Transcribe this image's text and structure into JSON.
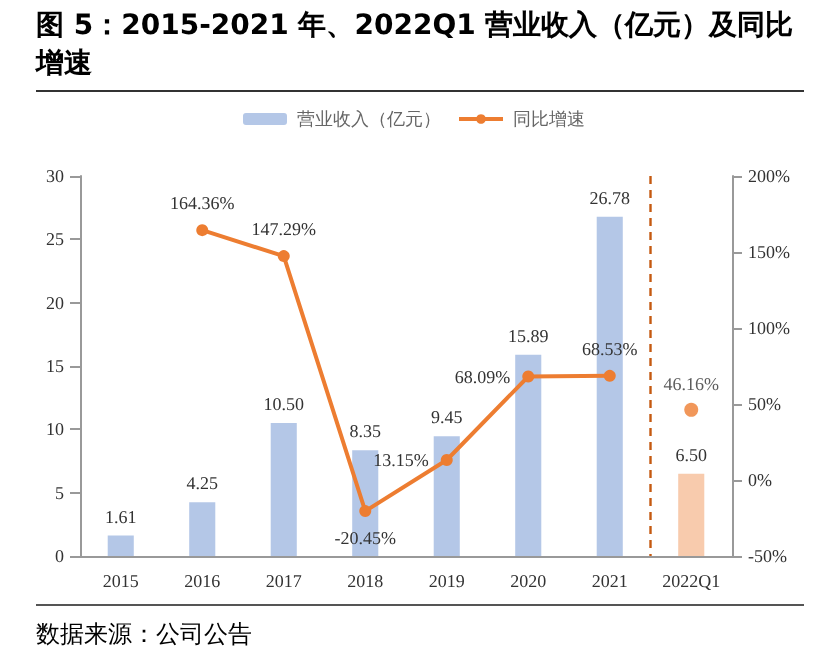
{
  "chart_data": {
    "type": "bar",
    "title": "图 5：2015-2021 年、2022Q1 营业收入（亿元）及同比增速",
    "annotations": [
      "数据来源：公司公告"
    ],
    "categories": [
      "2015",
      "2016",
      "2017",
      "2018",
      "2019",
      "2020",
      "2021",
      "2022Q1"
    ],
    "series": [
      {
        "name": "营业收入（亿元）",
        "color": "#b4c7e7",
        "colors": [
          "#b4c7e7",
          "#b4c7e7",
          "#b4c7e7",
          "#b4c7e7",
          "#b4c7e7",
          "#b4c7e7",
          "#b4c7e7",
          "#f8cbad"
        ],
        "values": [
          1.61,
          4.25,
          10.5,
          8.35,
          9.45,
          15.89,
          26.78,
          6.5
        ],
        "value_labels": [
          "1.61",
          "4.25",
          "10.50",
          "8.35",
          "9.45",
          "15.89",
          "26.78",
          "6.50"
        ]
      },
      {
        "name": "同比增速",
        "type": "line",
        "axis": "y2",
        "color": "#ed7d31",
        "marker": "circle",
        "values": [
          null,
          164.36,
          147.29,
          -20.45,
          13.15,
          68.09,
          68.53,
          null
        ],
        "value_labels": [
          null,
          "164.36%",
          "147.29%",
          "-20.45%",
          "13.15%",
          "68.09%",
          "68.53%",
          null
        ]
      },
      {
        "type": "scatter",
        "axis": "y2",
        "color": "#ed7d31",
        "marker": "circle",
        "x": [
          "2022Q1"
        ],
        "values": [
          46.16
        ],
        "value_labels": [
          "46.16%"
        ]
      }
    ],
    "ylim": [
      0,
      30
    ],
    "yticks": [
      0,
      5,
      10,
      15,
      20,
      25,
      30
    ],
    "y2lim": [
      -50,
      200
    ],
    "y2ticks": [
      {
        "value": -50,
        "label": "-50%"
      },
      {
        "value": 0,
        "label": "0%"
      },
      {
        "value": 50,
        "label": "50%"
      },
      {
        "value": 100,
        "label": "100%"
      },
      {
        "value": 150,
        "label": "150%"
      },
      {
        "value": 200,
        "label": "200%"
      }
    ],
    "ref_lines": [
      {
        "axis": "x",
        "value": "2022Q1",
        "color": "#c55a11",
        "line_style": "dashed"
      }
    ],
    "legend": "top",
    "grid": false
  }
}
